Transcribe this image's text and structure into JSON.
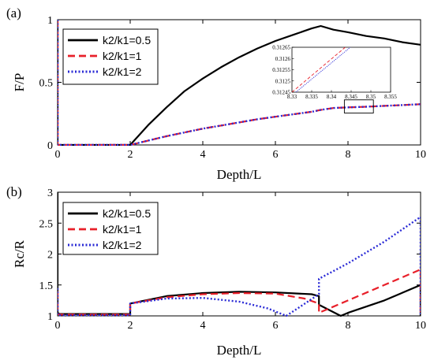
{
  "chart_data": [
    {
      "type": "line",
      "panel_label": "(a)",
      "xlabel": "Depth/L",
      "ylabel": "F/P",
      "xlim": [
        0,
        10
      ],
      "ylim": [
        0,
        1
      ],
      "xticks": [
        "0",
        "2",
        "4",
        "6",
        "8",
        "10"
      ],
      "yticks": [
        "0",
        "0.5",
        "1"
      ],
      "legend_position": "top-left",
      "series": [
        {
          "name": "k2/k1=0.5",
          "color": "#000000",
          "style": "solid",
          "x": [
            0,
            0,
            0.05,
            2,
            2.5,
            3,
            3.5,
            4,
            4.5,
            5,
            5.5,
            6,
            6.5,
            7,
            7.25,
            7.6,
            8,
            8.5,
            9,
            9.5,
            10
          ],
          "y": [
            1,
            0,
            0,
            0,
            0.16,
            0.3,
            0.43,
            0.53,
            0.62,
            0.7,
            0.77,
            0.83,
            0.88,
            0.93,
            0.95,
            0.92,
            0.9,
            0.87,
            0.85,
            0.82,
            0.8
          ]
        },
        {
          "name": "k2/k1=1",
          "color": "#e8202a",
          "style": "dashed",
          "x": [
            0,
            0,
            0.05,
            2,
            2.5,
            3,
            3.5,
            4,
            4.5,
            5,
            5.5,
            6,
            6.5,
            7,
            7.25,
            7.6,
            8,
            8.5,
            9,
            9.5,
            10
          ],
          "y": [
            1,
            0,
            0,
            0,
            0.035,
            0.07,
            0.1,
            0.13,
            0.155,
            0.18,
            0.205,
            0.225,
            0.245,
            0.265,
            0.28,
            0.295,
            0.3,
            0.305,
            0.312,
            0.318,
            0.325
          ]
        },
        {
          "name": "k2/k1=2",
          "color": "#2b2bd6",
          "style": "dotted",
          "x": [
            0,
            0,
            0.05,
            2,
            2.5,
            3,
            3.5,
            4,
            4.5,
            5,
            5.5,
            6,
            6.5,
            7,
            7.25,
            7.6,
            8,
            8.5,
            9,
            9.5,
            10
          ],
          "y": [
            1,
            0,
            0,
            0,
            0.035,
            0.07,
            0.1,
            0.13,
            0.155,
            0.18,
            0.205,
            0.225,
            0.245,
            0.265,
            0.28,
            0.295,
            0.3,
            0.305,
            0.312,
            0.318,
            0.325
          ]
        }
      ],
      "inset": {
        "xlim": [
          8.33,
          8.355
        ],
        "ylim": [
          0.31245,
          0.31265
        ],
        "xticks": [
          "8.33",
          "8.335",
          "8.34",
          "8.345",
          "8.35",
          "8.355"
        ],
        "yticks": [
          "0.31245",
          "0.3125",
          "0.31255",
          "0.3126",
          "0.31265"
        ],
        "series": [
          {
            "name": "k2/k1=1",
            "x": [
              8.33,
              8.3435
            ],
            "y": [
              0.31245,
              0.31265
            ]
          },
          {
            "name": "k2/k1=2",
            "x": [
              8.331,
              8.3448
            ],
            "y": [
              0.31245,
              0.31265
            ]
          }
        ]
      }
    },
    {
      "type": "line",
      "panel_label": "(b)",
      "xlabel": "Depth/L",
      "ylabel": "Rc/R",
      "xlim": [
        0,
        10
      ],
      "ylim": [
        1,
        3
      ],
      "xticks": [
        "0",
        "2",
        "4",
        "6",
        "8",
        "10"
      ],
      "yticks": [
        "1",
        "1.5",
        "2",
        "2.5",
        "3"
      ],
      "legend_position": "top-left",
      "series": [
        {
          "name": "k2/k1=0.5",
          "color": "#000000",
          "style": "solid",
          "x": [
            0,
            0,
            0.05,
            2,
            2,
            3,
            4,
            5,
            6,
            7,
            7.2,
            7.2,
            7.8,
            8,
            9,
            10,
            10
          ],
          "y": [
            3,
            1.05,
            1.03,
            1.03,
            1.2,
            1.32,
            1.37,
            1.39,
            1.38,
            1.35,
            1.32,
            1.18,
            1.0,
            1.05,
            1.25,
            1.5,
            1.0
          ]
        },
        {
          "name": "k2/k1=1",
          "color": "#e8202a",
          "style": "dashed",
          "x": [
            0,
            0,
            0.05,
            2,
            2,
            3,
            4,
            5,
            6,
            6.8,
            7.2,
            7.2,
            8,
            9,
            10,
            10
          ],
          "y": [
            1.4,
            1.03,
            1.02,
            1.02,
            1.2,
            1.3,
            1.35,
            1.37,
            1.36,
            1.28,
            1.2,
            1.05,
            1.25,
            1.5,
            1.75,
            1.0
          ]
        },
        {
          "name": "k2/k1=2",
          "color": "#2b2bd6",
          "style": "dotted",
          "x": [
            0,
            0,
            0.05,
            2,
            2,
            3,
            4,
            5,
            5.8,
            6.3,
            7.2,
            7.2,
            8,
            9,
            10,
            10
          ],
          "y": [
            1.45,
            1.02,
            1.01,
            1.01,
            1.2,
            1.28,
            1.29,
            1.23,
            1.12,
            1.0,
            1.35,
            1.6,
            1.85,
            2.2,
            2.6,
            1.0
          ]
        }
      ]
    }
  ]
}
